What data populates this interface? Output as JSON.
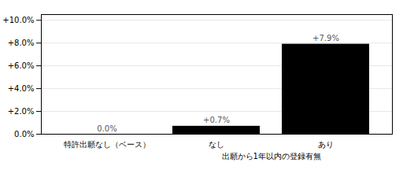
{
  "chart_data": {
    "type": "bar",
    "categories": [
      "特許出願なし（ベース）",
      "なし",
      "あり"
    ],
    "values": [
      0.0,
      0.7,
      7.9
    ],
    "value_labels": [
      "0.0%",
      "+0.7%",
      "+7.9%"
    ],
    "data_labels": true,
    "ylim": [
      0,
      10.5
    ],
    "yticks": [
      {
        "value": 0,
        "label": "0.0%"
      },
      {
        "value": 2,
        "label": "+2.0%"
      },
      {
        "value": 4,
        "label": "+4.0%"
      },
      {
        "value": 6,
        "label": "+6.0%"
      },
      {
        "value": 8,
        "label": "+8.0%"
      },
      {
        "value": 10,
        "label": "+10.0%"
      }
    ],
    "grid": true,
    "annotations": [
      {
        "text": "出願から1年以内の登録有無",
        "categories": [
          "なし",
          "あり"
        ]
      }
    ]
  }
}
